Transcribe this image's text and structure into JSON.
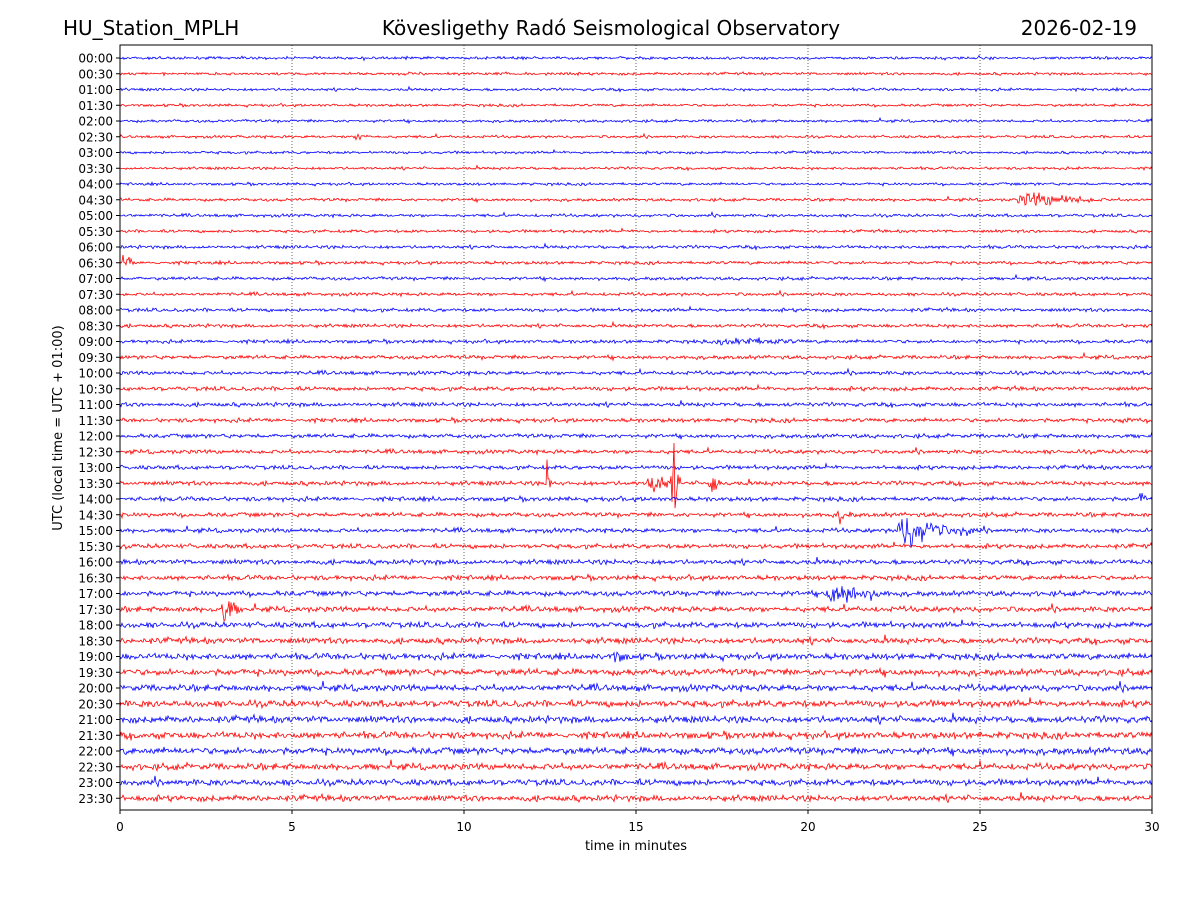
{
  "header": {
    "station": "HU_Station_MPLH",
    "observatory": "Kövesligethy Radó Seismological Observatory",
    "date": "2026-02-19"
  },
  "chart_data": {
    "type": "line",
    "title": "Kövesligethy Radó Seismological Observatory",
    "xlabel": "time in minutes",
    "ylabel": "UTC (local time = UTC + 01:00)",
    "xlim": [
      0,
      30
    ],
    "xticks": [
      0,
      5,
      10,
      15,
      20,
      25,
      30
    ],
    "grid": "vertical dotted lines at every 5 minutes",
    "trace_colors": [
      "#0000ff",
      "#ff0000"
    ],
    "rows": [
      "00:00",
      "00:30",
      "01:00",
      "01:30",
      "02:00",
      "02:30",
      "03:00",
      "03:30",
      "04:00",
      "04:30",
      "05:00",
      "05:30",
      "06:00",
      "06:30",
      "07:00",
      "07:30",
      "08:00",
      "08:30",
      "09:00",
      "09:30",
      "10:00",
      "10:30",
      "11:00",
      "11:30",
      "12:00",
      "12:30",
      "13:00",
      "13:30",
      "14:00",
      "14:30",
      "15:00",
      "15:30",
      "16:00",
      "16:30",
      "17:00",
      "17:30",
      "18:00",
      "18:30",
      "19:00",
      "19:30",
      "20:00",
      "20:30",
      "21:00",
      "21:30",
      "22:00",
      "22:30",
      "23:00",
      "23:30"
    ],
    "noise_levels": [
      1.0,
      1.0,
      1.0,
      1.0,
      1.0,
      1.0,
      1.0,
      1.0,
      1.0,
      1.1,
      1.1,
      1.1,
      1.2,
      1.2,
      1.2,
      1.2,
      1.3,
      1.3,
      1.3,
      1.4,
      1.4,
      1.5,
      1.5,
      1.5,
      1.5,
      1.5,
      1.5,
      1.6,
      1.6,
      1.6,
      1.6,
      1.7,
      1.8,
      1.8,
      1.9,
      2.0,
      2.1,
      2.2,
      2.3,
      2.4,
      2.4,
      2.5,
      2.5,
      2.5,
      2.5,
      2.4,
      2.3,
      2.2
    ],
    "events": [
      {
        "row": "02:30",
        "start": 6.8,
        "end": 7.4,
        "amp": 4
      },
      {
        "row": "04:30",
        "start": 25.9,
        "end": 28.8,
        "amp": 6
      },
      {
        "row": "06:30",
        "start": 0.05,
        "end": 0.4,
        "amp": 10
      },
      {
        "row": "09:00",
        "start": 17.2,
        "end": 20.5,
        "amp": 4
      },
      {
        "row": "11:30",
        "start": 29.0,
        "end": 29.6,
        "amp": 4
      },
      {
        "row": "13:30",
        "start": 12.4,
        "end": 12.55,
        "amp": 30
      },
      {
        "row": "13:30",
        "start": 15.3,
        "end": 16.0,
        "amp": 12
      },
      {
        "row": "13:30",
        "start": 16.0,
        "end": 16.3,
        "amp": 30
      },
      {
        "row": "13:30",
        "start": 17.1,
        "end": 17.5,
        "amp": 12
      },
      {
        "row": "14:00",
        "start": 29.6,
        "end": 30.0,
        "amp": 6
      },
      {
        "row": "14:30",
        "start": 20.8,
        "end": 21.4,
        "amp": 6
      },
      {
        "row": "15:00",
        "start": 22.5,
        "end": 24.2,
        "amp": 14
      },
      {
        "row": "15:00",
        "start": 24.2,
        "end": 25.2,
        "amp": 6
      },
      {
        "row": "17:00",
        "start": 20.4,
        "end": 22.5,
        "amp": 9
      },
      {
        "row": "17:30",
        "start": 2.9,
        "end": 3.5,
        "amp": 14
      },
      {
        "row": "19:00",
        "start": 14.2,
        "end": 15.0,
        "amp": 6
      }
    ]
  }
}
